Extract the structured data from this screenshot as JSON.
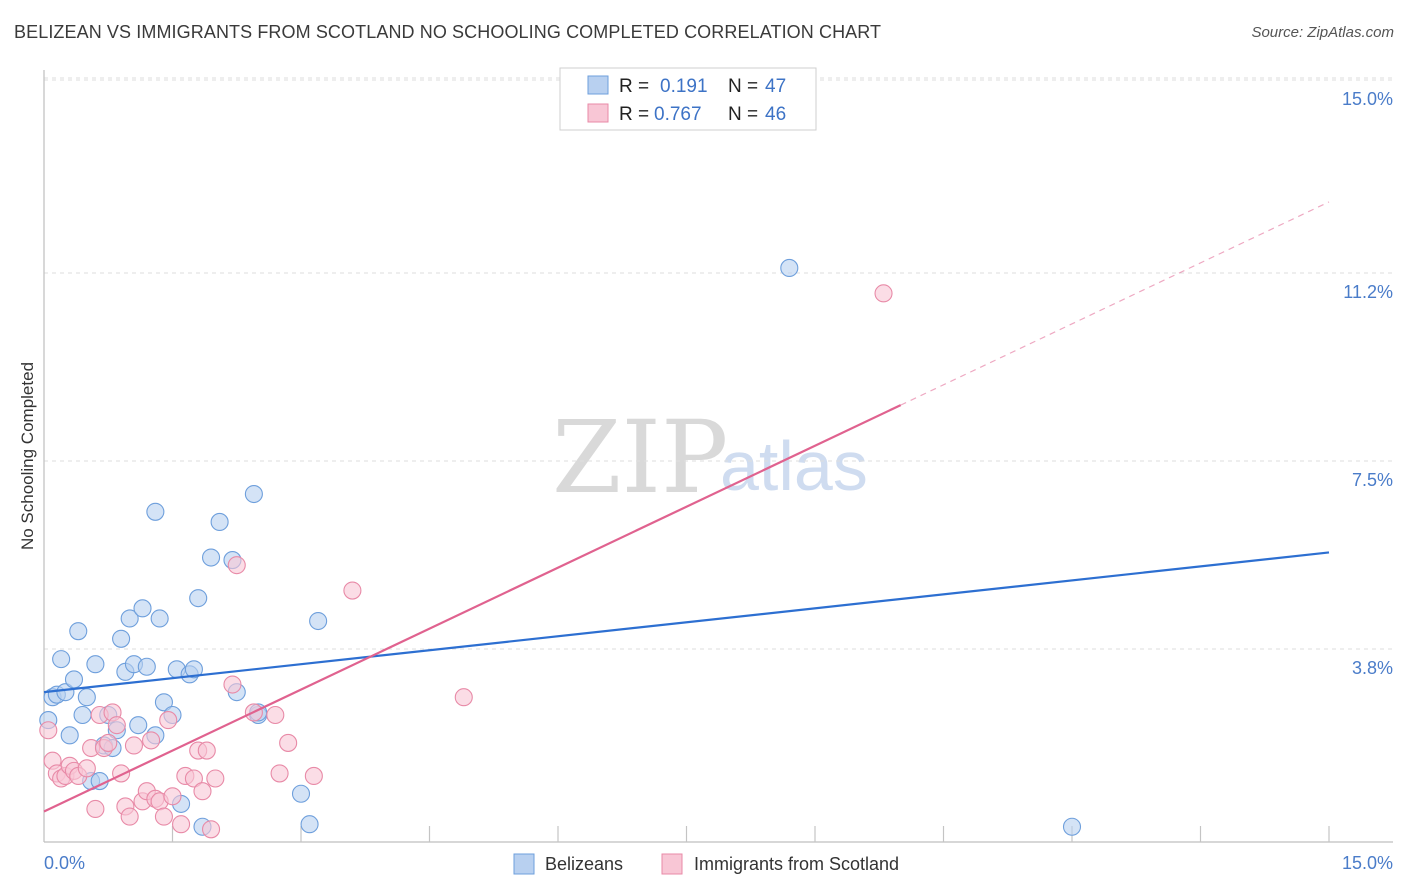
{
  "title": "BELIZEAN VS IMMIGRANTS FROM SCOTLAND NO SCHOOLING COMPLETED CORRELATION CHART",
  "source": "Source: ZipAtlas.com",
  "watermark": {
    "zip": "ZIP",
    "atlas": "atlas"
  },
  "chart_data": {
    "type": "scatter",
    "title": "BELIZEAN VS IMMIGRANTS FROM SCOTLAND NO SCHOOLING COMPLETED CORRELATION CHART",
    "xlabel": "",
    "ylabel": "No Schooling Completed",
    "xlim": [
      0,
      15
    ],
    "ylim": [
      0,
      15
    ],
    "x_tick_labels": [
      "0.0%",
      "15.0%"
    ],
    "y_ticks": [
      3.8,
      7.5,
      11.2,
      15.0
    ],
    "y_tick_labels": [
      "3.8%",
      "7.5%",
      "11.2%",
      "15.0%"
    ],
    "grid": true,
    "legend": {
      "position": "top-center",
      "entries": [
        {
          "r_label": "R =",
          "r": "0.191",
          "n_label": "N =",
          "n": "47"
        },
        {
          "r_label": "R =",
          "r": "0.767",
          "n_label": "N =",
          "n": "46"
        }
      ]
    },
    "series": [
      {
        "name": "Belizeans",
        "color": "#6e9fdc",
        "fill": "#b8d0f0",
        "trend": {
          "x0": 0,
          "y0": 2.95,
          "x1": 15,
          "y1": 5.7,
          "color": "#2d6fd1"
        },
        "points": [
          [
            0.05,
            2.4
          ],
          [
            0.1,
            2.85
          ],
          [
            0.15,
            2.9
          ],
          [
            0.2,
            3.6
          ],
          [
            0.25,
            2.95
          ],
          [
            0.3,
            2.1
          ],
          [
            0.35,
            3.2
          ],
          [
            0.4,
            4.15
          ],
          [
            0.45,
            2.5
          ],
          [
            0.5,
            2.85
          ],
          [
            0.55,
            1.2
          ],
          [
            0.6,
            3.5
          ],
          [
            0.65,
            1.2
          ],
          [
            0.7,
            1.9
          ],
          [
            0.75,
            2.5
          ],
          [
            0.8,
            1.85
          ],
          [
            0.85,
            2.2
          ],
          [
            0.9,
            4.0
          ],
          [
            0.95,
            3.35
          ],
          [
            1.0,
            4.4
          ],
          [
            1.05,
            3.5
          ],
          [
            1.1,
            2.3
          ],
          [
            1.15,
            4.6
          ],
          [
            1.2,
            3.45
          ],
          [
            1.3,
            2.1
          ],
          [
            1.3,
            6.5
          ],
          [
            1.35,
            4.4
          ],
          [
            1.4,
            2.75
          ],
          [
            1.5,
            2.5
          ],
          [
            1.55,
            3.4
          ],
          [
            1.6,
            0.75
          ],
          [
            1.7,
            3.3
          ],
          [
            1.75,
            3.4
          ],
          [
            1.8,
            4.8
          ],
          [
            1.85,
            0.3
          ],
          [
            1.95,
            5.6
          ],
          [
            2.05,
            6.3
          ],
          [
            2.2,
            5.55
          ],
          [
            2.25,
            2.95
          ],
          [
            2.45,
            6.85
          ],
          [
            2.5,
            2.5
          ],
          [
            2.5,
            2.55
          ],
          [
            3.0,
            0.95
          ],
          [
            3.1,
            0.35
          ],
          [
            3.2,
            4.35
          ],
          [
            8.7,
            11.3
          ],
          [
            12.0,
            0.3
          ]
        ]
      },
      {
        "name": "Immigrants from Scotland",
        "color": "#e88aa7",
        "fill": "#f8c6d5",
        "trend": {
          "x0": 0,
          "y0": 0.6,
          "x1": 10.0,
          "y1": 8.6,
          "color": "#e0628f"
        },
        "trend_extension": {
          "x0": 10.0,
          "y0": 8.6,
          "x1": 15,
          "y1": 12.6
        },
        "points": [
          [
            0.05,
            2.2
          ],
          [
            0.1,
            1.6
          ],
          [
            0.15,
            1.35
          ],
          [
            0.2,
            1.25
          ],
          [
            0.25,
            1.3
          ],
          [
            0.3,
            1.5
          ],
          [
            0.35,
            1.4
          ],
          [
            0.4,
            1.3
          ],
          [
            0.5,
            1.45
          ],
          [
            0.55,
            1.85
          ],
          [
            0.6,
            0.65
          ],
          [
            0.65,
            2.5
          ],
          [
            0.7,
            1.85
          ],
          [
            0.75,
            1.95
          ],
          [
            0.8,
            2.55
          ],
          [
            0.85,
            2.3
          ],
          [
            0.9,
            1.35
          ],
          [
            0.95,
            0.7
          ],
          [
            1.0,
            0.5
          ],
          [
            1.05,
            1.9
          ],
          [
            1.15,
            0.8
          ],
          [
            1.2,
            1.0
          ],
          [
            1.25,
            2.0
          ],
          [
            1.3,
            0.85
          ],
          [
            1.35,
            0.8
          ],
          [
            1.4,
            0.5
          ],
          [
            1.45,
            2.4
          ],
          [
            1.5,
            0.9
          ],
          [
            1.6,
            0.35
          ],
          [
            1.65,
            1.3
          ],
          [
            1.75,
            1.25
          ],
          [
            1.8,
            1.8
          ],
          [
            1.85,
            1.0
          ],
          [
            1.9,
            1.8
          ],
          [
            1.95,
            0.25
          ],
          [
            2.0,
            1.25
          ],
          [
            2.2,
            3.1
          ],
          [
            2.25,
            5.45
          ],
          [
            2.45,
            2.55
          ],
          [
            2.7,
            2.5
          ],
          [
            2.75,
            1.35
          ],
          [
            2.85,
            1.95
          ],
          [
            3.15,
            1.3
          ],
          [
            3.6,
            4.95
          ],
          [
            4.9,
            2.85
          ],
          [
            9.8,
            10.8
          ]
        ]
      }
    ]
  }
}
